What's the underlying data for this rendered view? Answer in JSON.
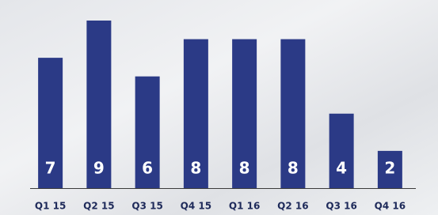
{
  "chart_data": {
    "type": "bar",
    "categories": [
      "Q1 15",
      "Q2 15",
      "Q3 15",
      "Q4 15",
      "Q1 16",
      "Q2 16",
      "Q3 16",
      "Q4 16"
    ],
    "values": [
      7,
      9,
      6,
      8,
      8,
      8,
      4,
      2
    ],
    "color": "#2b3a86"
  }
}
